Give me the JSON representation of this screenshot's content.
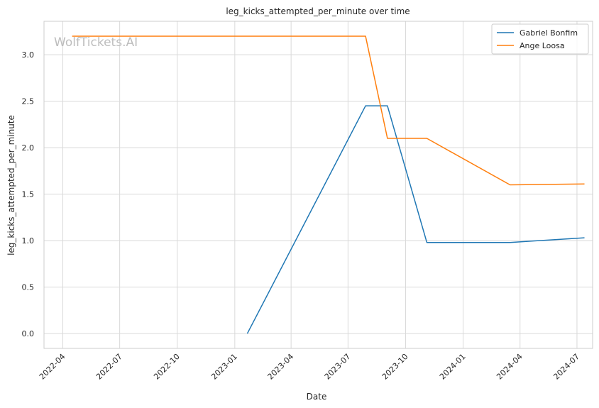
{
  "chart_data": {
    "type": "line",
    "title": "leg_kicks_attempted_per_minute over time",
    "xlabel": "Date",
    "ylabel": "leg_kicks_attempted_per_minute",
    "watermark": "WolfTickets.AI",
    "xlim": [
      "2022-03-02",
      "2024-07-26"
    ],
    "ylim": [
      -0.16,
      3.36
    ],
    "x_ticks": [
      "2022-04",
      "2022-07",
      "2022-10",
      "2023-01",
      "2023-04",
      "2023-07",
      "2023-10",
      "2024-01",
      "2024-04",
      "2024-07"
    ],
    "y_ticks": [
      "0.0",
      "0.5",
      "1.0",
      "1.5",
      "2.0",
      "2.5",
      "3.0"
    ],
    "grid": true,
    "legend": "top-right",
    "colors": {
      "gabriel": "#1f77b4",
      "ange": "#ff7f0e"
    },
    "series": [
      {
        "name": "Gabriel Bonfim",
        "color": "#1f77b4",
        "points": [
          {
            "x": "2023-01-21",
            "y": 0.0
          },
          {
            "x": "2023-07-29",
            "y": 2.45
          },
          {
            "x": "2023-09-02",
            "y": 2.45
          },
          {
            "x": "2023-11-04",
            "y": 0.98
          },
          {
            "x": "2024-03-16",
            "y": 0.98
          },
          {
            "x": "2024-07-13",
            "y": 1.03
          }
        ]
      },
      {
        "name": "Ange Loosa",
        "color": "#ff7f0e",
        "points": [
          {
            "x": "2022-04-16",
            "y": 3.2
          },
          {
            "x": "2023-07-29",
            "y": 3.2
          },
          {
            "x": "2023-09-02",
            "y": 2.1
          },
          {
            "x": "2023-11-04",
            "y": 2.1
          },
          {
            "x": "2024-03-16",
            "y": 1.6
          },
          {
            "x": "2024-07-13",
            "y": 1.61
          }
        ]
      }
    ]
  }
}
